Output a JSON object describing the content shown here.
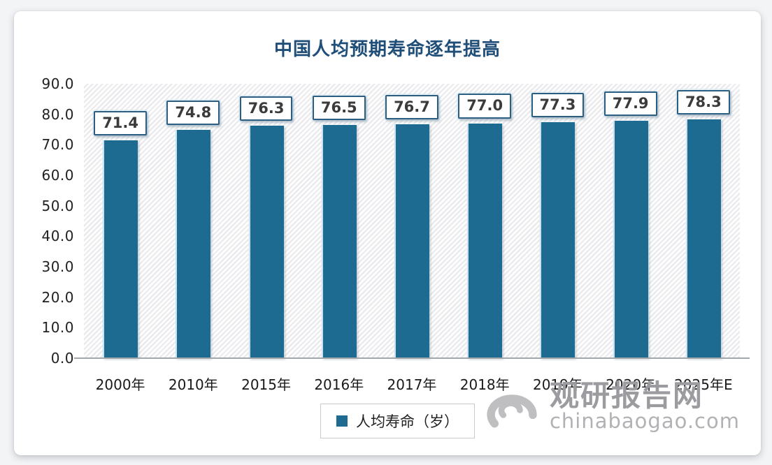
{
  "chart_data": {
    "type": "bar",
    "title": "中国人均预期寿命逐年提高",
    "categories": [
      "2000年",
      "2010年",
      "2015年",
      "2016年",
      "2017年",
      "2018年",
      "2019年",
      "2020年",
      "2025年E"
    ],
    "values": [
      71.4,
      74.8,
      76.3,
      76.5,
      76.7,
      77.0,
      77.3,
      77.9,
      78.3
    ],
    "value_labels": [
      "71.4",
      "74.8",
      "76.3",
      "76.5",
      "76.7",
      "77.0",
      "77.3",
      "77.9",
      "78.3"
    ],
    "ylim": [
      0,
      90
    ],
    "yticks": [
      "90.0",
      "80.0",
      "70.0",
      "60.0",
      "50.0",
      "40.0",
      "30.0",
      "20.0",
      "10.0",
      "0.0"
    ],
    "legend": "人均寿命（岁）",
    "legend_position": "bottom",
    "grid": false,
    "bar_color": "#1e6b92",
    "title_color": "#1f4e79"
  },
  "watermark": {
    "name": "观研报告网",
    "url": "chinabaogao.com"
  }
}
